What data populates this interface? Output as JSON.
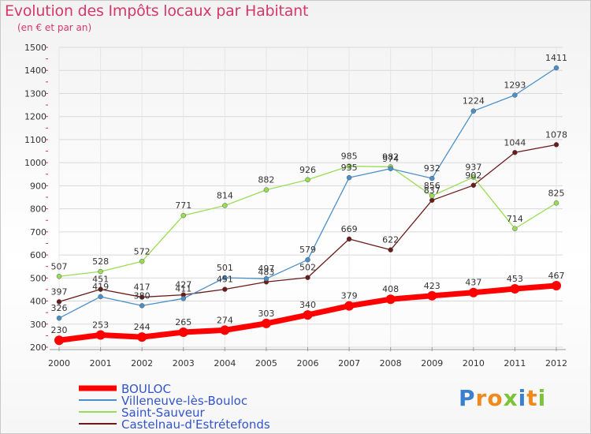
{
  "chart_data": {
    "type": "line",
    "title": "Evolution des Impôts locaux par Habitant",
    "subtitle": "(en € et par an)",
    "xlabel": "",
    "ylabel": "",
    "ylim": [
      200,
      1500
    ],
    "yticks": [
      "200",
      "300",
      "400",
      "500",
      "600",
      "700",
      "800",
      "900",
      "1000",
      "1100",
      "1200",
      "1300",
      "1400",
      "1500"
    ],
    "categories": [
      "2000",
      "2001",
      "2002",
      "2003",
      "2004",
      "2005",
      "2006",
      "2007",
      "2008",
      "2009",
      "2010",
      "2011",
      "2012"
    ],
    "series": [
      {
        "name": "BOULOC",
        "color": "#ff0000",
        "values": [
          230,
          253,
          244,
          265,
          274,
          303,
          340,
          379,
          408,
          423,
          437,
          453,
          467
        ],
        "labels": [
          "230",
          "253",
          "244",
          "265",
          "274",
          "303",
          "340",
          "379",
          "408",
          "423",
          "437",
          "453",
          "467"
        ]
      },
      {
        "name": "Villeneuve-lès-Bouloc",
        "color": "#4a8fc8",
        "values": [
          326,
          419,
          380,
          411,
          501,
          497,
          579,
          935,
          974,
          932,
          1224,
          1293,
          1411
        ],
        "labels": [
          "326",
          "419",
          "380",
          "411",
          "501",
          "497",
          "579",
          "935",
          "974",
          "932",
          "1224",
          "1293",
          "1411"
        ]
      },
      {
        "name": "Saint-Sauveur",
        "color": "#99dd55",
        "values": [
          507,
          528,
          572,
          771,
          814,
          882,
          926,
          985,
          982,
          856,
          937,
          714,
          825
        ],
        "labels": [
          "507",
          "528",
          "572",
          "771",
          "814",
          "882",
          "926",
          "985",
          "982",
          "856",
          "937",
          "714",
          "825"
        ]
      },
      {
        "name": "Castelnau-d'Estrétefonds",
        "color": "#6b1a1a",
        "values": [
          397,
          451,
          417,
          427,
          451,
          483,
          502,
          669,
          622,
          837,
          902,
          1044,
          1078
        ],
        "labels": [
          "397",
          "451",
          "417",
          "427",
          "451",
          "483",
          "502",
          "669",
          "622",
          "837",
          "902",
          "1044",
          "1078"
        ]
      }
    ],
    "legend": "bottom-left"
  },
  "logo": {
    "text": "Proxiti",
    "letters": [
      {
        "ch": "P",
        "color": "#3a7fd0"
      },
      {
        "ch": "r",
        "color": "#f08a1c"
      },
      {
        "ch": "o",
        "color": "#f08a1c"
      },
      {
        "ch": "x",
        "color": "#7cc33a"
      },
      {
        "ch": "i",
        "color": "#3a7fd0"
      },
      {
        "ch": "t",
        "color": "#f08a1c"
      },
      {
        "ch": "i",
        "color": "#7cc33a"
      }
    ]
  },
  "colors": {
    "title": "#d6386a",
    "legend_text": "#3355cc",
    "grid": "#d9d9d9",
    "axis_text": "#333333"
  }
}
